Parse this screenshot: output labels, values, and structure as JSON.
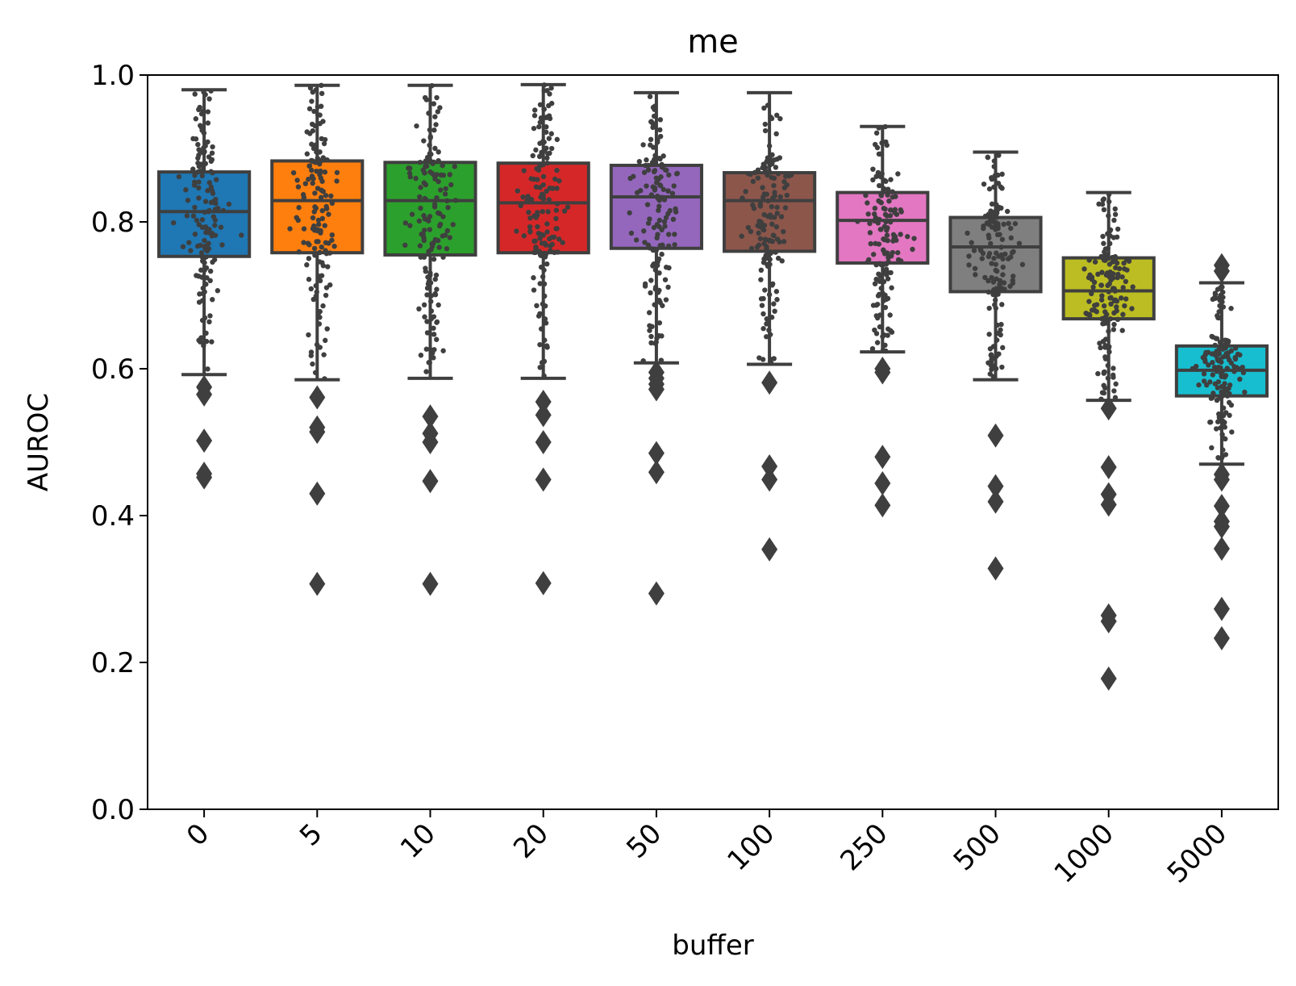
{
  "chart_data": {
    "type": "box",
    "title": "me",
    "xlabel": "buffer",
    "ylabel": "AUROC",
    "ylim": [
      0.0,
      1.0
    ],
    "yticks": [
      0.0,
      0.2,
      0.4,
      0.6,
      0.8,
      1.0
    ],
    "ytick_labels": [
      "0.0",
      "0.2",
      "0.4",
      "0.6",
      "0.8",
      "1.0"
    ],
    "grid": false,
    "legend": "none",
    "overlay": "swarm points (dark grey) over each box",
    "series": [
      {
        "category": "0",
        "color": "#1f77b4",
        "whisker_low": 0.592,
        "q1": 0.753,
        "median": 0.814,
        "q3": 0.868,
        "whisker_high": 0.98,
        "outliers": [
          0.575,
          0.565,
          0.502,
          0.457,
          0.452
        ]
      },
      {
        "category": "5",
        "color": "#ff7f0e",
        "whisker_low": 0.585,
        "q1": 0.758,
        "median": 0.829,
        "q3": 0.883,
        "whisker_high": 0.986,
        "outliers": [
          0.561,
          0.52,
          0.514,
          0.43,
          0.307
        ]
      },
      {
        "category": "10",
        "color": "#2ca02c",
        "whisker_low": 0.587,
        "q1": 0.755,
        "median": 0.829,
        "q3": 0.881,
        "whisker_high": 0.986,
        "outliers": [
          0.535,
          0.512,
          0.5,
          0.447,
          0.307
        ]
      },
      {
        "category": "20",
        "color": "#d62728",
        "whisker_low": 0.587,
        "q1": 0.758,
        "median": 0.826,
        "q3": 0.88,
        "whisker_high": 0.987,
        "outliers": [
          0.555,
          0.537,
          0.5,
          0.449,
          0.308
        ]
      },
      {
        "category": "50",
        "color": "#9467bd",
        "whisker_low": 0.608,
        "q1": 0.764,
        "median": 0.834,
        "q3": 0.877,
        "whisker_high": 0.976,
        "outliers": [
          0.595,
          0.587,
          0.579,
          0.572,
          0.485,
          0.459,
          0.294
        ]
      },
      {
        "category": "100",
        "color": "#8c564b",
        "whisker_low": 0.606,
        "q1": 0.76,
        "median": 0.829,
        "q3": 0.867,
        "whisker_high": 0.976,
        "outliers": [
          0.581,
          0.467,
          0.449,
          0.354
        ]
      },
      {
        "category": "250",
        "color": "#e377c2",
        "whisker_low": 0.623,
        "q1": 0.744,
        "median": 0.802,
        "q3": 0.84,
        "whisker_high": 0.93,
        "outliers": [
          0.6,
          0.595,
          0.48,
          0.444,
          0.414
        ]
      },
      {
        "category": "500",
        "color": "#7f7f7f",
        "whisker_low": 0.585,
        "q1": 0.705,
        "median": 0.766,
        "q3": 0.806,
        "whisker_high": 0.895,
        "outliers": [
          0.509,
          0.44,
          0.419,
          0.328
        ]
      },
      {
        "category": "1000",
        "color": "#bcbd22",
        "whisker_low": 0.557,
        "q1": 0.668,
        "median": 0.706,
        "q3": 0.751,
        "whisker_high": 0.84,
        "outliers": [
          0.546,
          0.466,
          0.429,
          0.415,
          0.264,
          0.256,
          0.178
        ]
      },
      {
        "category": "5000",
        "color": "#17becf",
        "whisker_low": 0.47,
        "q1": 0.563,
        "median": 0.598,
        "q3": 0.631,
        "whisker_high": 0.717,
        "outliers": [
          0.741,
          0.733,
          0.456,
          0.449,
          0.413,
          0.392,
          0.385,
          0.355,
          0.273,
          0.233
        ]
      }
    ]
  }
}
